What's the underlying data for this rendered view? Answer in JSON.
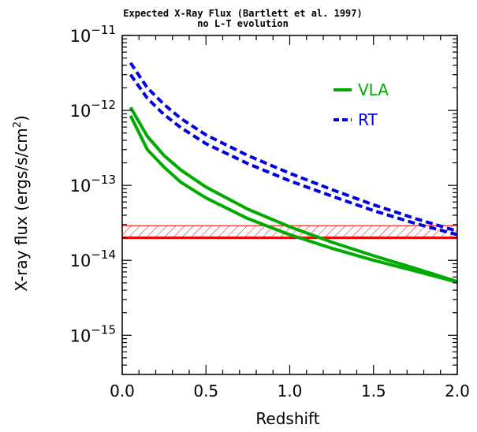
{
  "colors": {
    "vla": "#00aa00",
    "rt": "#0000dd",
    "limit": "#ee0000",
    "axis": "#000000",
    "background": "#ffffff"
  },
  "chart_data": {
    "type": "line",
    "title": "Expected X-Ray Flux (Bartlett et al. 1997)",
    "subtitle": "no L-T evolution",
    "xlabel": "Redshift",
    "ylabel": "X-ray flux (ergs/s/cm",
    "ylabel_sup": "2",
    "ylabel_tail": ")",
    "xlim": [
      0.0,
      2.0
    ],
    "ylim": [
      3e-16,
      1e-11
    ],
    "y_scale": "log",
    "grid": false,
    "legend_position": "top-right",
    "x_ticks": [
      {
        "value": 0.0,
        "label": "0.0"
      },
      {
        "value": 0.5,
        "label": "0.5"
      },
      {
        "value": 1.0,
        "label": "1.0"
      },
      {
        "value": 1.5,
        "label": "1.5"
      },
      {
        "value": 2.0,
        "label": "2.0"
      }
    ],
    "x_minor_step": 0.1,
    "y_ticks": [
      {
        "value": 1e-11,
        "base": "10",
        "exp": "−11"
      },
      {
        "value": 1e-12,
        "base": "10",
        "exp": "−12"
      },
      {
        "value": 1e-13,
        "base": "10",
        "exp": "−13"
      },
      {
        "value": 1e-14,
        "base": "10",
        "exp": "−14"
      },
      {
        "value": 1e-15,
        "base": "10",
        "exp": "−15"
      }
    ],
    "series": [
      {
        "name": "VLA",
        "style": "solid",
        "color": "#00aa00",
        "show_in_legend": true,
        "x": [
          0.05,
          0.15,
          0.25,
          0.35,
          0.5,
          0.75,
          1.0,
          1.25,
          1.5,
          1.75,
          2.0
        ],
        "y": [
          1.1e-12,
          4.5e-13,
          2.5e-13,
          1.6e-13,
          9.5e-14,
          4.8e-14,
          2.8e-14,
          1.75e-14,
          1.15e-14,
          7.8e-15,
          5.2e-15
        ]
      },
      {
        "name": "VLA",
        "style": "solid",
        "color": "#00aa00",
        "show_in_legend": false,
        "x": [
          0.05,
          0.15,
          0.25,
          0.35,
          0.5,
          0.75,
          1.0,
          1.25,
          1.5,
          1.75,
          2.0
        ],
        "y": [
          8.5e-13,
          3e-13,
          1.75e-13,
          1.1e-13,
          6.8e-14,
          3.6e-14,
          2.2e-14,
          1.45e-14,
          1e-14,
          7.2e-15,
          5.1e-15
        ]
      },
      {
        "name": "RT",
        "style": "dashed",
        "color": "#0000dd",
        "show_in_legend": true,
        "x": [
          0.05,
          0.15,
          0.25,
          0.35,
          0.5,
          0.75,
          1.0,
          1.25,
          1.5,
          1.75,
          2.0
        ],
        "y": [
          4.3e-12,
          2e-12,
          1.2e-12,
          7.8e-13,
          4.7e-13,
          2.5e-13,
          1.45e-13,
          8.8e-14,
          5.5e-14,
          3.6e-14,
          2.45e-14
        ]
      },
      {
        "name": "RT",
        "style": "dashed",
        "color": "#0000dd",
        "show_in_legend": false,
        "x": [
          0.05,
          0.15,
          0.25,
          0.35,
          0.5,
          0.75,
          1.0,
          1.25,
          1.5,
          1.75,
          2.0
        ],
        "y": [
          3e-12,
          1.45e-12,
          8.8e-13,
          5.9e-13,
          3.6e-13,
          1.95e-13,
          1.15e-13,
          7.2e-14,
          4.6e-14,
          3.1e-14,
          2.2e-14
        ]
      }
    ],
    "limit_line": {
      "y": 2e-14,
      "color": "#ee0000"
    },
    "hatched_band": {
      "y_low": 2e-14,
      "y_high": 2.9e-14,
      "color": "#ee0000"
    }
  }
}
